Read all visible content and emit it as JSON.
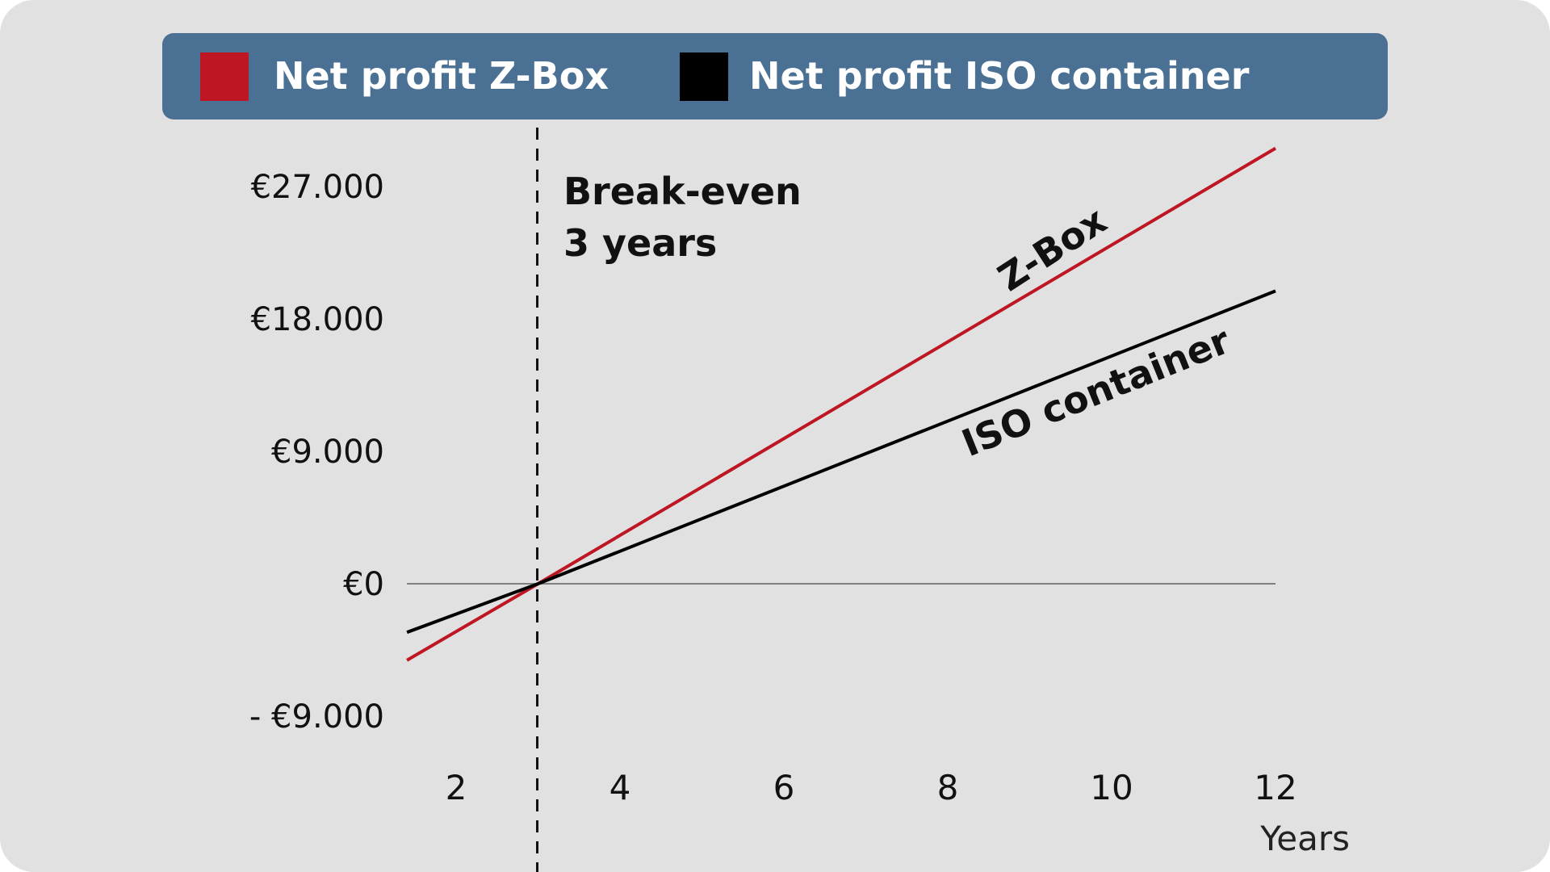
{
  "colors": {
    "background": "#e1e1e1",
    "legend_bar": "#4a7094",
    "z_box": "#be1622",
    "iso_container": "#000000",
    "zero_line": "#808080"
  },
  "legend": {
    "items": [
      {
        "label": "Net profit Z-Box",
        "color": "#be1622"
      },
      {
        "label": "Net profit ISO container",
        "color": "#000000"
      }
    ]
  },
  "chart_data": {
    "type": "line",
    "xlabel": "Years",
    "ylabel": "",
    "x_ticks": [
      2,
      4,
      6,
      8,
      10,
      12
    ],
    "y_ticks": [
      {
        "value": 27000,
        "label": "€27.000"
      },
      {
        "value": 18000,
        "label": "€18.000"
      },
      {
        "value": 9000,
        "label": "€9.000"
      },
      {
        "value": 0,
        "label": "€0"
      },
      {
        "value": -9000,
        "label": "- €9.000"
      }
    ],
    "xlim": [
      1.4,
      12
    ],
    "ylim": [
      -9000,
      27000
    ],
    "grid": false,
    "legend_position": "top",
    "series": [
      {
        "name": "Z-Box",
        "color": "#be1622",
        "x": [
          1.4,
          3,
          12
        ],
        "y": [
          -5200,
          0,
          29600
        ]
      },
      {
        "name": "ISO container",
        "color": "#000000",
        "x": [
          1.4,
          3,
          12
        ],
        "y": [
          -3300,
          0,
          19900
        ]
      }
    ],
    "annotations": {
      "break_even": {
        "x": 3,
        "lines": [
          "Break-even",
          "3 years"
        ]
      }
    }
  }
}
